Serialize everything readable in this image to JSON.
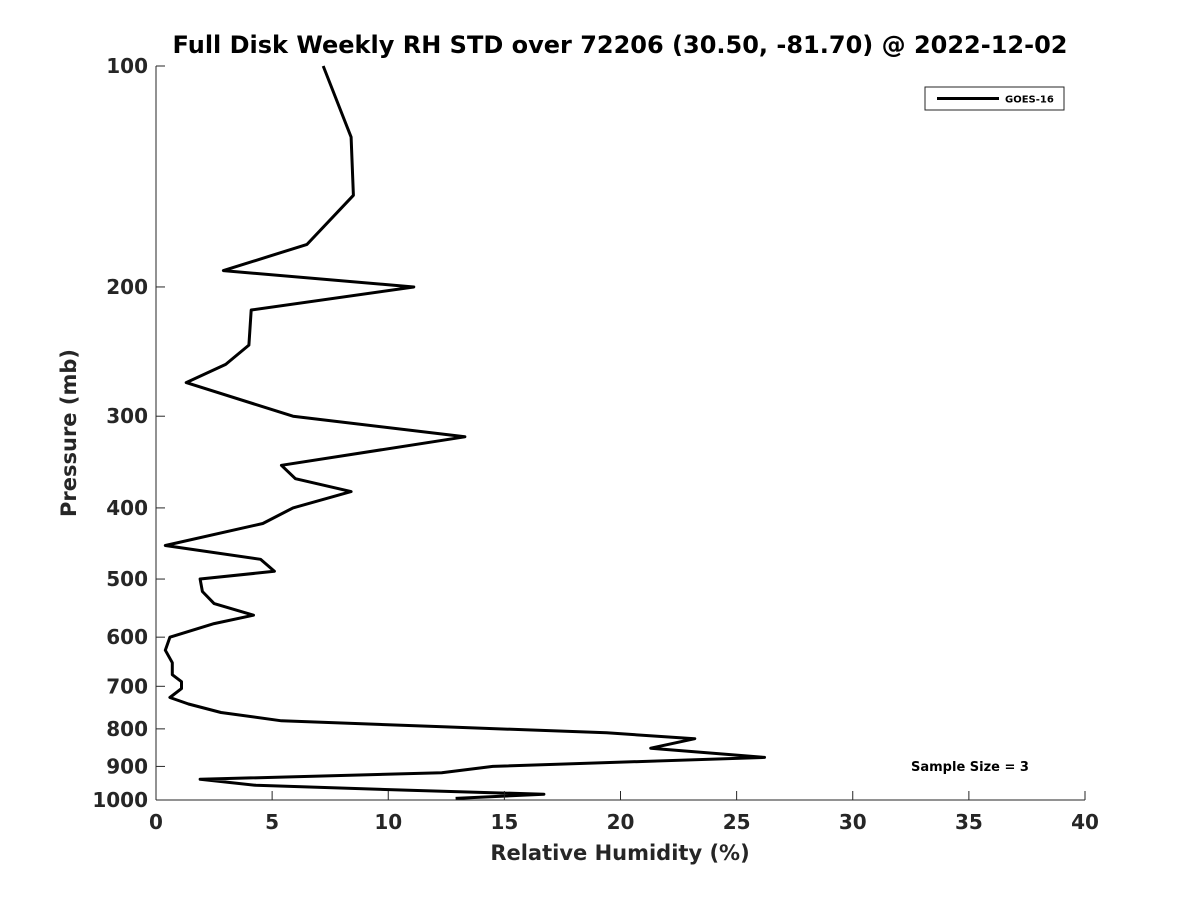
{
  "chart_data": {
    "type": "line",
    "title": "Full Disk Weekly RH STD over 72206 (30.50, -81.70) @ 2022-12-02",
    "xlabel": "Relative Humidity (%)",
    "ylabel": "Pressure (mb)",
    "xlim": [
      0,
      40
    ],
    "ylim": [
      100,
      1000
    ],
    "y_scale": "log",
    "y_reversed": true,
    "x_ticks": [
      "0",
      "5",
      "10",
      "15",
      "20",
      "25",
      "30",
      "35",
      "40"
    ],
    "y_ticks": [
      "100",
      "200",
      "300",
      "400",
      "500",
      "600",
      "700",
      "800",
      "900",
      "1000"
    ],
    "grid": false,
    "legend_position": "top-right",
    "series": [
      {
        "name": "GOES-16",
        "color": "#000000",
        "points": [
          [
            7.2,
            100
          ],
          [
            8.4,
            125
          ],
          [
            8.5,
            150
          ],
          [
            6.5,
            175
          ],
          [
            2.9,
            190
          ],
          [
            11.1,
            200
          ],
          [
            4.1,
            215
          ],
          [
            4.0,
            240
          ],
          [
            3.0,
            255
          ],
          [
            1.3,
            270
          ],
          [
            5.9,
            300
          ],
          [
            13.3,
            320
          ],
          [
            5.4,
            350
          ],
          [
            6.0,
            365
          ],
          [
            8.4,
            380
          ],
          [
            5.9,
            400
          ],
          [
            4.6,
            420
          ],
          [
            0.4,
            450
          ],
          [
            4.5,
            470
          ],
          [
            5.1,
            488
          ],
          [
            1.9,
            500
          ],
          [
            2.0,
            520
          ],
          [
            2.5,
            540
          ],
          [
            4.2,
            560
          ],
          [
            2.5,
            575
          ],
          [
            0.6,
            600
          ],
          [
            0.4,
            625
          ],
          [
            0.7,
            650
          ],
          [
            0.7,
            675
          ],
          [
            1.1,
            690
          ],
          [
            1.1,
            705
          ],
          [
            0.6,
            725
          ],
          [
            1.4,
            740
          ],
          [
            2.8,
            760
          ],
          [
            5.4,
            780
          ],
          [
            12.5,
            795
          ],
          [
            19.4,
            810
          ],
          [
            23.2,
            825
          ],
          [
            21.3,
            850
          ],
          [
            26.2,
            875
          ],
          [
            14.5,
            900
          ],
          [
            12.3,
            918
          ],
          [
            1.9,
            937
          ],
          [
            4.3,
            955
          ],
          [
            10.9,
            970
          ],
          [
            16.7,
            982
          ],
          [
            12.9,
            995
          ]
        ]
      }
    ],
    "annotations": [
      "Sample Size = 3"
    ]
  }
}
